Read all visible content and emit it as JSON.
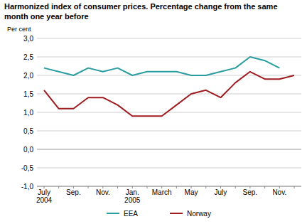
{
  "chart_data": {
    "type": "line",
    "title": "Harmonized index of consumer prices. Percentage change from the same month one year before",
    "y_label": "Per cent",
    "categories": [
      "July 2004",
      null,
      "Sep.",
      null,
      "Nov.",
      null,
      "Jan. 2005",
      null,
      "March",
      null,
      "May",
      null,
      "July",
      null,
      "Sep.",
      null,
      "Nov.",
      null
    ],
    "series": [
      {
        "name": "EEA",
        "color": "#2a9d9f",
        "values": [
          2.2,
          2.1,
          2.0,
          2.2,
          2.1,
          2.2,
          2.0,
          2.1,
          2.1,
          2.1,
          2.0,
          2.0,
          2.1,
          2.2,
          2.5,
          2.4,
          2.2,
          null
        ]
      },
      {
        "name": "Norway",
        "color": "#9e1b20",
        "values": [
          1.6,
          1.1,
          1.1,
          1.4,
          1.4,
          1.2,
          0.9,
          0.9,
          0.9,
          1.2,
          1.5,
          1.6,
          1.4,
          1.8,
          2.1,
          1.9,
          1.9,
          2.0
        ]
      }
    ],
    "ylim": [
      -1.0,
      3.0
    ],
    "yticks": [
      {
        "value": -1.0,
        "label": "-1,0"
      },
      {
        "value": -0.5,
        "label": "-0,5"
      },
      {
        "value": 0,
        "label": "0,0"
      },
      {
        "value": 0.5,
        "label": "0,5"
      },
      {
        "value": 1.0,
        "label": "1,0"
      },
      {
        "value": 1.5,
        "label": "1,5"
      },
      {
        "value": 2.0,
        "label": "2,0"
      },
      {
        "value": 2.5,
        "label": "2,5"
      },
      {
        "value": 3.0,
        "label": "3,0"
      }
    ],
    "grid": true,
    "legend": "bottom"
  }
}
